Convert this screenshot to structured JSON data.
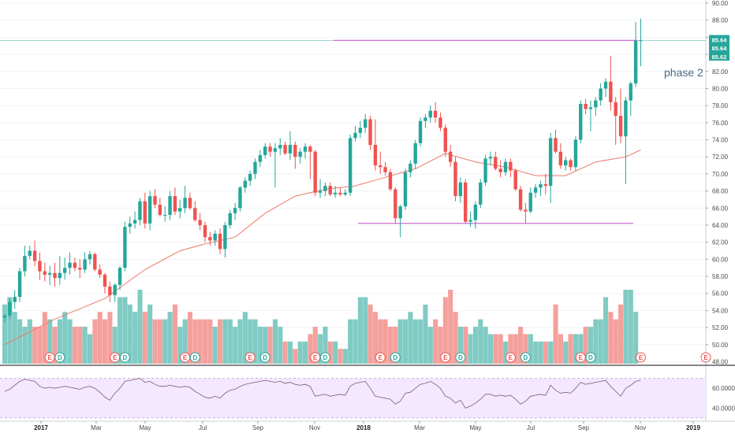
{
  "chart_data": {
    "type": "candlestick",
    "price_axis": {
      "ylim": [
        48,
        90
      ],
      "ticks": [
        "90.00",
        "88.00",
        "86.00",
        "84.00",
        "82.00",
        "80.00",
        "78.00",
        "76.00",
        "74.00",
        "72.00",
        "70.00",
        "68.00",
        "66.00",
        "64.00",
        "62.00",
        "60.00",
        "58.00",
        "56.00",
        "54.00",
        "52.00",
        "50.00",
        "48.00"
      ]
    },
    "time_axis": {
      "labels": [
        "2017",
        "Mar",
        "May",
        "Jul",
        "Sep",
        "Nov",
        "2018",
        "Mar",
        "May",
        "Jul",
        "Sep",
        "Nov",
        "2019"
      ],
      "bold": [
        "2017",
        "2018",
        "2019"
      ]
    },
    "price_badges": [
      "85.64",
      "85.64",
      "85.62"
    ],
    "annotation": "phase 2",
    "resistance_level": 85.64,
    "support_level": 64.2,
    "candles": [
      [
        53.2,
        53.6,
        52.6,
        53.4
      ],
      [
        53.4,
        55.4,
        53.0,
        55.0
      ],
      [
        55.0,
        56.4,
        54.2,
        55.6
      ],
      [
        55.6,
        59.0,
        55.0,
        58.6
      ],
      [
        58.6,
        61.6,
        58.0,
        60.4
      ],
      [
        60.4,
        61.6,
        60.0,
        61.0
      ],
      [
        61.0,
        62.2,
        59.2,
        59.8
      ],
      [
        59.8,
        60.8,
        57.6,
        58.6
      ],
      [
        58.6,
        59.6,
        57.4,
        58.2
      ],
      [
        58.2,
        59.2,
        57.0,
        58.4
      ],
      [
        58.4,
        59.6,
        56.8,
        57.8
      ],
      [
        57.8,
        60.4,
        57.0,
        58.4
      ],
      [
        58.4,
        60.2,
        57.6,
        59.0
      ],
      [
        59.0,
        60.8,
        58.2,
        59.6
      ],
      [
        59.6,
        60.2,
        58.6,
        59.0
      ],
      [
        59.0,
        60.0,
        57.8,
        58.8
      ],
      [
        58.8,
        60.8,
        58.4,
        60.0
      ],
      [
        60.0,
        61.0,
        59.4,
        60.6
      ],
      [
        60.6,
        60.8,
        58.6,
        58.8
      ],
      [
        58.8,
        59.4,
        57.8,
        58.2
      ],
      [
        58.2,
        58.4,
        56.0,
        56.8
      ],
      [
        56.8,
        57.4,
        55.0,
        55.8
      ],
      [
        55.8,
        57.2,
        55.0,
        57.0
      ],
      [
        57.0,
        59.2,
        56.4,
        59.0
      ],
      [
        59.0,
        64.4,
        58.6,
        63.8
      ],
      [
        63.8,
        65.0,
        63.0,
        64.2
      ],
      [
        64.2,
        65.6,
        63.6,
        64.6
      ],
      [
        64.6,
        67.2,
        64.0,
        66.8
      ],
      [
        66.8,
        67.8,
        63.6,
        64.2
      ],
      [
        64.2,
        68.0,
        63.4,
        67.4
      ],
      [
        67.4,
        68.2,
        66.0,
        66.4
      ],
      [
        66.4,
        67.2,
        65.0,
        65.2
      ],
      [
        65.2,
        66.2,
        64.4,
        65.2
      ],
      [
        65.2,
        68.0,
        64.6,
        67.4
      ],
      [
        67.4,
        68.4,
        65.2,
        65.6
      ],
      [
        65.6,
        67.0,
        64.8,
        66.0
      ],
      [
        66.0,
        68.6,
        65.4,
        67.2
      ],
      [
        67.2,
        67.8,
        65.8,
        66.0
      ],
      [
        66.0,
        66.8,
        64.4,
        64.6
      ],
      [
        64.6,
        65.4,
        63.4,
        64.0
      ],
      [
        64.0,
        64.4,
        62.0,
        62.6
      ],
      [
        62.6,
        63.2,
        61.6,
        62.2
      ],
      [
        62.2,
        63.4,
        61.6,
        63.0
      ],
      [
        63.0,
        63.6,
        60.6,
        61.2
      ],
      [
        61.2,
        64.4,
        60.2,
        64.0
      ],
      [
        64.0,
        65.8,
        63.6,
        65.4
      ],
      [
        65.4,
        66.6,
        64.6,
        66.0
      ],
      [
        66.0,
        68.6,
        65.6,
        68.4
      ],
      [
        68.4,
        69.6,
        67.8,
        69.2
      ],
      [
        69.2,
        70.4,
        68.6,
        70.0
      ],
      [
        70.0,
        71.8,
        69.4,
        71.4
      ],
      [
        71.4,
        72.8,
        70.8,
        72.2
      ],
      [
        72.2,
        73.6,
        71.8,
        73.2
      ],
      [
        73.2,
        73.6,
        72.0,
        72.6
      ],
      [
        72.6,
        73.6,
        68.4,
        73.0
      ],
      [
        73.0,
        74.2,
        72.2,
        73.4
      ],
      [
        73.4,
        73.8,
        72.2,
        72.4
      ],
      [
        72.4,
        75.0,
        71.6,
        73.4
      ],
      [
        73.4,
        73.8,
        70.6,
        72.0
      ],
      [
        72.0,
        73.0,
        71.2,
        72.6
      ],
      [
        72.6,
        73.6,
        71.8,
        73.2
      ],
      [
        73.2,
        73.4,
        69.4,
        72.6
      ],
      [
        72.6,
        72.8,
        67.4,
        67.8
      ],
      [
        67.8,
        69.4,
        67.2,
        68.0
      ],
      [
        68.0,
        69.0,
        67.4,
        68.6
      ],
      [
        68.6,
        69.0,
        67.4,
        67.6
      ],
      [
        67.6,
        68.6,
        67.2,
        67.8
      ],
      [
        67.8,
        68.4,
        67.4,
        67.6
      ],
      [
        67.6,
        68.2,
        67.4,
        67.8
      ],
      [
        67.8,
        74.6,
        67.4,
        74.2
      ],
      [
        74.2,
        75.6,
        73.8,
        74.8
      ],
      [
        74.8,
        76.2,
        74.2,
        75.4
      ],
      [
        75.4,
        77.0,
        74.8,
        76.4
      ],
      [
        76.4,
        76.8,
        72.8,
        73.4
      ],
      [
        73.4,
        76.4,
        70.4,
        71.0
      ],
      [
        71.0,
        72.6,
        70.0,
        70.8
      ],
      [
        70.8,
        71.4,
        69.8,
        70.2
      ],
      [
        70.2,
        70.6,
        68.0,
        68.2
      ],
      [
        68.2,
        68.4,
        64.2,
        64.8
      ],
      [
        64.8,
        66.4,
        62.6,
        66.2
      ],
      [
        66.2,
        70.6,
        65.8,
        70.2
      ],
      [
        70.2,
        71.6,
        69.6,
        71.2
      ],
      [
        71.2,
        74.0,
        70.6,
        73.6
      ],
      [
        73.6,
        76.6,
        73.2,
        76.2
      ],
      [
        76.2,
        77.0,
        75.4,
        76.6
      ],
      [
        76.6,
        78.0,
        76.0,
        77.4
      ],
      [
        77.4,
        78.4,
        76.0,
        76.6
      ],
      [
        76.6,
        77.2,
        75.0,
        75.4
      ],
      [
        75.4,
        75.8,
        72.0,
        72.6
      ],
      [
        72.6,
        73.4,
        70.8,
        71.4
      ],
      [
        71.4,
        72.0,
        66.8,
        67.4
      ],
      [
        67.4,
        69.6,
        66.6,
        69.0
      ],
      [
        69.0,
        69.4,
        64.2,
        64.4
      ],
      [
        64.4,
        65.6,
        63.8,
        64.6
      ],
      [
        64.6,
        66.8,
        63.6,
        66.4
      ],
      [
        66.4,
        69.4,
        66.0,
        69.0
      ],
      [
        69.0,
        72.2,
        68.6,
        71.8
      ],
      [
        71.8,
        72.6,
        71.0,
        72.0
      ],
      [
        72.0,
        72.6,
        70.4,
        70.6
      ],
      [
        70.6,
        71.6,
        69.6,
        70.2
      ],
      [
        70.2,
        71.8,
        69.8,
        71.4
      ],
      [
        71.4,
        71.8,
        69.6,
        70.4
      ],
      [
        70.4,
        70.6,
        68.0,
        68.2
      ],
      [
        68.2,
        68.6,
        65.6,
        65.8
      ],
      [
        65.8,
        66.6,
        64.2,
        65.6
      ],
      [
        65.6,
        68.4,
        65.4,
        67.8
      ],
      [
        67.8,
        68.8,
        67.2,
        68.4
      ],
      [
        68.4,
        69.2,
        67.4,
        68.8
      ],
      [
        68.8,
        70.0,
        67.6,
        68.6
      ],
      [
        68.6,
        74.8,
        66.6,
        74.2
      ],
      [
        74.2,
        75.2,
        72.4,
        72.6
      ],
      [
        72.6,
        73.6,
        70.6,
        71.0
      ],
      [
        71.0,
        72.0,
        70.4,
        71.6
      ],
      [
        71.6,
        71.8,
        70.4,
        70.8
      ],
      [
        70.8,
        74.4,
        70.4,
        74.0
      ],
      [
        74.0,
        78.6,
        73.6,
        78.2
      ],
      [
        78.2,
        78.8,
        77.0,
        77.6
      ],
      [
        77.6,
        78.6,
        75.0,
        77.8
      ],
      [
        77.8,
        79.0,
        76.8,
        78.6
      ],
      [
        78.6,
        80.6,
        78.0,
        80.0
      ],
      [
        80.0,
        81.2,
        79.0,
        80.8
      ],
      [
        80.8,
        83.8,
        77.4,
        78.4
      ],
      [
        78.4,
        79.0,
        73.4,
        76.8
      ],
      [
        76.8,
        80.0,
        73.6,
        74.4
      ],
      [
        74.4,
        79.0,
        68.8,
        78.6
      ],
      [
        78.6,
        80.8,
        76.8,
        80.6
      ],
      [
        80.6,
        87.8,
        80.2,
        85.6
      ],
      [
        85.6,
        88.2,
        82.6,
        85.64
      ]
    ],
    "volume": [
      8,
      9,
      7,
      6,
      5,
      6,
      5,
      5,
      7,
      6,
      5,
      6,
      7,
      6,
      5,
      5,
      5,
      4,
      6,
      7,
      6,
      7,
      5,
      9,
      9,
      8,
      7,
      10,
      7,
      8,
      6,
      6,
      6,
      7,
      8,
      5,
      6,
      7,
      6,
      6,
      6,
      6,
      5,
      6,
      6,
      6,
      5,
      6,
      7,
      6,
      6,
      5,
      5,
      5,
      6,
      5,
      3,
      3,
      2,
      3,
      3,
      4,
      5,
      4,
      5,
      3,
      3,
      2,
      2,
      6,
      6,
      9,
      9,
      8,
      7,
      6,
      6,
      5,
      5,
      6,
      6,
      7,
      6,
      6,
      8,
      5,
      6,
      5,
      9,
      10,
      7,
      5,
      5,
      4,
      5,
      6,
      5,
      4,
      4,
      4,
      3,
      4,
      4,
      5,
      4,
      4,
      3,
      3,
      3,
      3,
      8,
      4,
      3,
      4,
      4,
      4,
      5,
      5,
      6,
      6,
      9,
      7,
      6,
      8,
      10,
      10,
      7
    ],
    "ma_line": [
      [
        0,
        50.0
      ],
      [
        10,
        53.0
      ],
      [
        20,
        55.4
      ],
      [
        28,
        58.8
      ],
      [
        35,
        61.0
      ],
      [
        40,
        61.8
      ],
      [
        46,
        62.6
      ],
      [
        52,
        65.4
      ],
      [
        58,
        67.4
      ],
      [
        64,
        68.2
      ],
      [
        70,
        68.6
      ],
      [
        76,
        69.6
      ],
      [
        82,
        70.6
      ],
      [
        88,
        72.4
      ],
      [
        94,
        71.4
      ],
      [
        100,
        70.8
      ],
      [
        106,
        69.8
      ],
      [
        112,
        69.8
      ],
      [
        118,
        71.4
      ],
      [
        124,
        72.0
      ],
      [
        127,
        72.8
      ]
    ],
    "earnings_markers": [
      {
        "i": 9,
        "t": "E"
      },
      {
        "i": 11,
        "t": "D"
      },
      {
        "i": 22,
        "t": "E"
      },
      {
        "i": 24,
        "t": "D"
      },
      {
        "i": 36,
        "t": "E"
      },
      {
        "i": 38,
        "t": "D"
      },
      {
        "i": 49,
        "t": "E"
      },
      {
        "i": 52,
        "t": "D"
      },
      {
        "i": 62,
        "t": "E"
      },
      {
        "i": 64,
        "t": "D"
      },
      {
        "i": 75,
        "t": "E"
      },
      {
        "i": 78,
        "t": "D"
      },
      {
        "i": 88,
        "t": "E"
      },
      {
        "i": 91,
        "t": "D"
      },
      {
        "i": 101,
        "t": "E"
      },
      {
        "i": 104,
        "t": "D"
      },
      {
        "i": 115,
        "t": "E"
      },
      {
        "i": 117,
        "t": "D"
      },
      {
        "i": 127,
        "t": "E"
      }
    ],
    "rsi": {
      "ticks": [
        "60.0000",
        "40.0000"
      ],
      "ylim": [
        30,
        80
      ],
      "overbought": 70,
      "oversold": 30,
      "values": [
        57,
        59,
        63,
        67,
        69,
        68,
        67,
        62,
        60,
        61,
        60,
        61,
        62,
        61,
        60,
        59,
        61,
        62,
        60,
        56,
        51,
        48,
        55,
        60,
        67,
        68,
        69,
        70,
        66,
        67,
        64,
        62,
        62,
        63,
        62,
        61,
        62,
        61,
        57,
        54,
        51,
        50,
        52,
        50,
        55,
        58,
        59,
        62,
        64,
        65,
        66,
        67,
        68,
        67,
        66,
        67,
        65,
        66,
        64,
        63,
        64,
        62,
        52,
        53,
        54,
        52,
        53,
        54,
        53,
        62,
        65,
        66,
        67,
        60,
        52,
        51,
        50,
        49,
        44,
        47,
        55,
        56,
        60,
        64,
        65,
        67,
        64,
        60,
        52,
        50,
        45,
        48,
        40,
        42,
        45,
        49,
        54,
        54,
        52,
        53,
        52,
        53,
        49,
        44,
        47,
        52,
        53,
        54,
        53,
        63,
        58,
        55,
        56,
        55,
        60,
        66,
        64,
        65,
        66,
        67,
        68,
        62,
        57,
        52,
        60,
        63,
        67,
        68
      ]
    }
  }
}
